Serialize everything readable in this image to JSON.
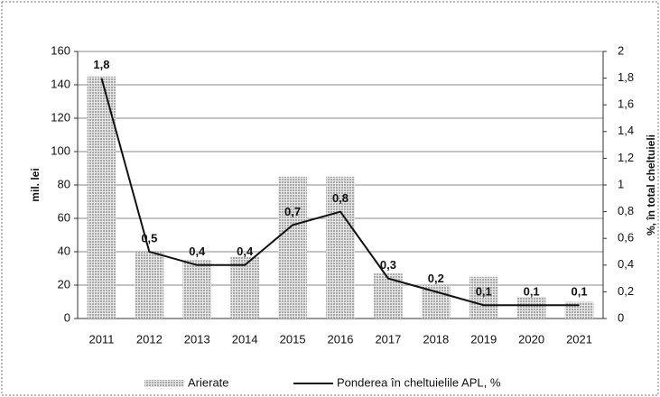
{
  "chart_data": {
    "type": "bar_line",
    "y_label": "mil. lei",
    "y2_label": "%, în total cheltuieli",
    "categories": [
      "2011",
      "2012",
      "2013",
      "2014",
      "2015",
      "2016",
      "2017",
      "2018",
      "2019",
      "2020",
      "2021"
    ],
    "series": [
      {
        "name": "Arierate",
        "type": "bar",
        "color": "#a8a8a8",
        "values": [
          145,
          40,
          35,
          37,
          85,
          85,
          27,
          20,
          25,
          13,
          10
        ]
      },
      {
        "name": "Ponderea în cheltuielile APL, %",
        "type": "line",
        "axis": "y2",
        "color": "#111111",
        "values": [
          1.8,
          0.5,
          0.4,
          0.4,
          0.7,
          0.8,
          0.3,
          0.2,
          0.1,
          0.1,
          0.1
        ],
        "value_labels": [
          "1,8",
          "0,5",
          "0,4",
          "0,4",
          "0,7",
          "0,8",
          "0,3",
          "0,2",
          "0,1",
          "0,1",
          "0,1"
        ]
      }
    ],
    "ylim": [
      0,
      160
    ],
    "yticks": [
      0,
      20,
      40,
      60,
      80,
      100,
      120,
      140,
      160
    ],
    "y2lim": [
      0,
      2
    ],
    "y2ticks": [
      0,
      {
        "value": 0.2,
        "label": "0,2"
      },
      {
        "value": 0.4,
        "label": "0,4"
      },
      {
        "value": 0.6,
        "label": "0,6"
      },
      {
        "value": 0.8,
        "label": "0,8"
      },
      1,
      {
        "value": 1.2,
        "label": "1,2"
      },
      {
        "value": 1.4,
        "label": "1,4"
      },
      {
        "value": 1.6,
        "label": "1,6"
      },
      {
        "value": 1.8,
        "label": "1,8"
      },
      2
    ],
    "grid": true,
    "legend": "bottom"
  }
}
